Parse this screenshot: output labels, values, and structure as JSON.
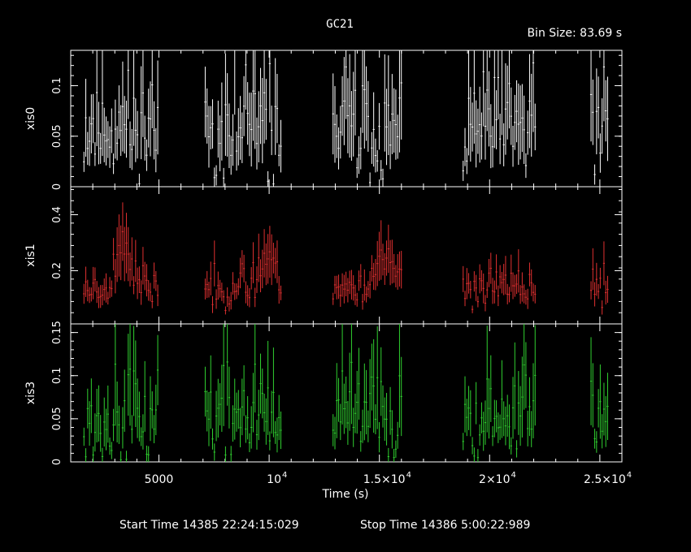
{
  "chart_data": {
    "type": "scatter",
    "title": "GC21",
    "bin_size_label": "Bin Size: 83.69 s",
    "xlabel": "Time (s)",
    "xlim": [
      1000,
      26000
    ],
    "x_ticks": [
      {
        "value": 5000,
        "label": "5000"
      },
      {
        "value": 10000,
        "label": "10",
        "exp": "4"
      },
      {
        "value": 15000,
        "label": "1.5×10",
        "exp": "4"
      },
      {
        "value": 20000,
        "label": "2×10",
        "exp": "4"
      },
      {
        "value": 25000,
        "label": "2.5×10",
        "exp": "4"
      }
    ],
    "segments": [
      [
        1600,
        5000
      ],
      [
        7100,
        10600
      ],
      [
        12900,
        16000
      ],
      [
        18800,
        22100
      ],
      [
        24600,
        25400
      ]
    ],
    "bin_width_s": 83.69,
    "panels": [
      {
        "name": "xis0",
        "ylabel": "xis0",
        "color": "#ffffff",
        "ylim": [
          0,
          0.135
        ],
        "y_ticks": [
          {
            "value": 0,
            "label": "0"
          },
          {
            "value": 0.05,
            "label": "0.05"
          },
          {
            "value": 0.1,
            "label": "0.1"
          }
        ],
        "baseline": 0.06,
        "amplitude": 0.028,
        "err_frac": 0.5,
        "seed": 11
      },
      {
        "name": "xis1",
        "ylabel": "xis1",
        "color": "#e03030",
        "ylim": [
          0.01,
          0.5
        ],
        "y_ticks": [
          {
            "value": 0.2,
            "label": "0.2"
          },
          {
            "value": 0.4,
            "label": "0.4"
          }
        ],
        "baseline": 0.14,
        "amplitude": 0.035,
        "err_frac": 0.3,
        "seed": 23,
        "flares": [
          {
            "x": 3400,
            "w": 450,
            "h": 0.17
          },
          {
            "x": 9900,
            "w": 500,
            "h": 0.12
          },
          {
            "x": 15200,
            "w": 450,
            "h": 0.14
          }
        ]
      },
      {
        "name": "xis3",
        "ylabel": "xis3",
        "color": "#30d030",
        "ylim": [
          0,
          0.16
        ],
        "y_ticks": [
          {
            "value": 0,
            "label": "0"
          },
          {
            "value": 0.05,
            "label": "0.05"
          },
          {
            "value": 0.1,
            "label": "0.1"
          },
          {
            "value": 0.15,
            "label": "0.15"
          }
        ],
        "baseline": 0.055,
        "amplitude": 0.028,
        "err_frac": 0.5,
        "seed": 37
      }
    ]
  },
  "footer": {
    "start_time": "Start Time 14385 22:24:15:029",
    "stop_time": "Stop Time 14386  5:00:22:989"
  }
}
